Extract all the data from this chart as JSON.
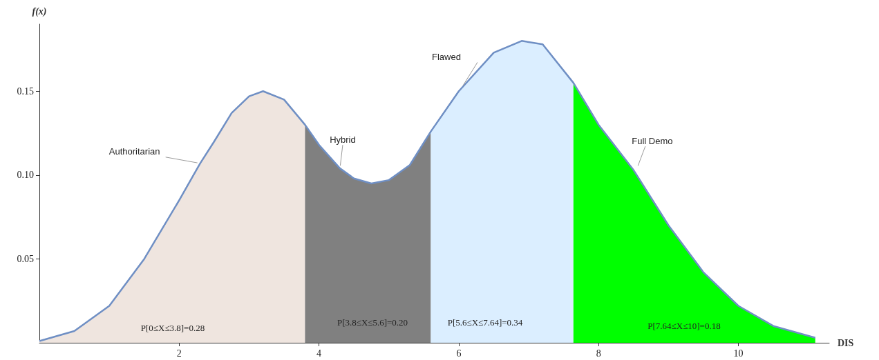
{
  "chart_data": {
    "type": "area",
    "xlabel": "DIS",
    "ylabel": "f(x)",
    "xlim": [
      0,
      11.3
    ],
    "ylim": [
      0,
      0.19
    ],
    "xticks": [
      2,
      4,
      6,
      8,
      10
    ],
    "yticks": [
      {
        "value": 0.05,
        "label": "0.05"
      },
      {
        "value": 0.1,
        "label": "0.10"
      },
      {
        "value": 0.15,
        "label": "0.15"
      }
    ],
    "grid": false,
    "series": [
      {
        "color": "#efe5df",
        "x": [
          0,
          0.5,
          1,
          1.5,
          2,
          2.3,
          2.5,
          2.75,
          3,
          3.2,
          3.5,
          3.8
        ],
        "values": [
          0.001,
          0.007,
          0.022,
          0.05,
          0.085,
          0.107,
          0.12,
          0.137,
          0.147,
          0.15,
          0.145,
          0.13
        ]
      },
      {
        "color": "#808080",
        "x": [
          3.8,
          4,
          4.3,
          4.5,
          4.75,
          5,
          5.3,
          5.6
        ],
        "values": [
          0.13,
          0.118,
          0.104,
          0.098,
          0.095,
          0.097,
          0.106,
          0.126
        ]
      },
      {
        "color": "#dbeeff",
        "x": [
          5.6,
          6,
          6.5,
          6.9,
          7.2,
          7.64
        ],
        "values": [
          0.126,
          0.15,
          0.173,
          0.18,
          0.178,
          0.155
        ]
      },
      {
        "color": "#00ff00",
        "x": [
          7.64,
          8,
          8.5,
          9,
          9.5,
          10,
          10.5,
          11.1
        ],
        "values": [
          0.155,
          0.13,
          0.103,
          0.07,
          0.042,
          0.022,
          0.01,
          0.003
        ]
      },
      {
        "type": "line",
        "color": "#6f8fc4",
        "x": [
          0,
          0.5,
          1,
          1.5,
          2,
          2.3,
          2.5,
          2.75,
          3,
          3.2,
          3.5,
          3.8,
          4,
          4.3,
          4.5,
          4.75,
          5,
          5.3,
          5.6,
          6,
          6.5,
          6.9,
          7.2,
          7.64,
          8,
          8.5,
          9,
          9.5,
          10,
          10.5,
          11.1
        ],
        "values": [
          0.001,
          0.007,
          0.022,
          0.05,
          0.085,
          0.107,
          0.12,
          0.137,
          0.147,
          0.15,
          0.145,
          0.13,
          0.118,
          0.104,
          0.098,
          0.095,
          0.097,
          0.106,
          0.126,
          0.15,
          0.173,
          0.18,
          0.178,
          0.155,
          0.13,
          0.103,
          0.07,
          0.042,
          0.022,
          0.01,
          0.003
        ]
      }
    ],
    "annotations": [
      {
        "text": "Authoritarian",
        "x": 2.3,
        "y": 0.107
      },
      {
        "text": "Hybrid",
        "x": 4.3,
        "y": 0.104
      },
      {
        "text": "Flawed",
        "x": 6.04,
        "y": 0.152
      },
      {
        "text": "Full Demo",
        "x": 8.55,
        "y": 0.104
      },
      "P[0≤X≤3.8]=0.28",
      "P[3.8≤X≤5.6]=0.20",
      "P[5.6≤X≤7.64]=0.34",
      "P[7.64≤X≤10]=0.18"
    ]
  }
}
